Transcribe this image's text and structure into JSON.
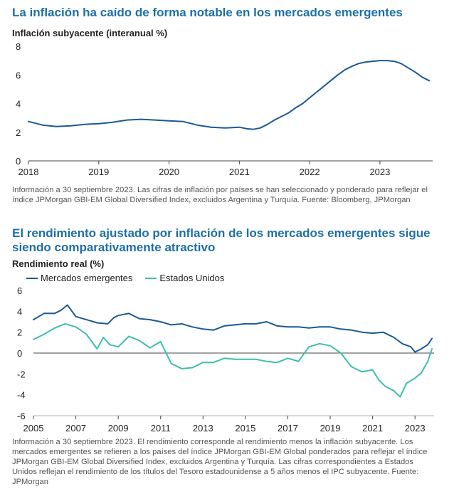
{
  "chart1": {
    "title": "La inflación ha caído de forma notable en los mercados emergentes",
    "ylabel": "Inflación subyacente (interanual %)",
    "note": "Información a 30 septiembre 2023. Las cifras de inflación por países se han seleccionado y ponderado para reflejar el índice JPMorgan GBI-EM Global Diversified Index, excluidos Argentina y Turquía. Fuente: Bloomberg, JPMorgan",
    "color": "#1a5a94"
  },
  "chart2": {
    "title": "El rendimiento ajustado por inflación de los mercados emergentes sigue siendo comparativamente atractivo",
    "ylabel": "Rendimiento real (%)",
    "legend": [
      "Mercados emergentes",
      "Estados Unidos"
    ],
    "note": "Información a 30 septiembre 2023. El rendimiento corresponde al rendimiento menos la inflación subyacente. Los mercados emergentes se refieren a los países del índice JPMorgan GBI-EM Global ponderados para reflejar el índice JPMorgan GBI-EM Global Diversified Index, excluidos Argentina y Turquía. Las cifras correspondientes a Estados Unidos reflejan el rendimiento de los títulos del Tesoro estadounidense a 5 años menos el IPC subyacente. Fuente: JPMorgan",
    "colors": [
      "#1a5a94",
      "#3bbfad"
    ]
  },
  "chart_data": [
    {
      "type": "line",
      "title": "La inflación ha caído de forma notable en los mercados emergentes",
      "ylabel": "Inflación subyacente (interanual %)",
      "xlabel": "",
      "xlim": [
        2018.0,
        2023.75
      ],
      "ylim": [
        0,
        8
      ],
      "yticks": [
        0,
        2,
        4,
        6,
        8
      ],
      "xticks": [
        2018,
        2019,
        2020,
        2021,
        2022,
        2023
      ],
      "series": [
        {
          "name": "Inflación subyacente",
          "x": [
            2018.0,
            2018.2,
            2018.4,
            2018.6,
            2018.8,
            2019.0,
            2019.2,
            2019.4,
            2019.6,
            2019.8,
            2020.0,
            2020.2,
            2020.4,
            2020.6,
            2020.8,
            2021.0,
            2021.1,
            2021.2,
            2021.3,
            2021.4,
            2021.5,
            2021.6,
            2021.7,
            2021.8,
            2021.9,
            2022.0,
            2022.1,
            2022.2,
            2022.3,
            2022.4,
            2022.5,
            2022.6,
            2022.7,
            2022.8,
            2022.9,
            2023.0,
            2023.1,
            2023.2,
            2023.3,
            2023.4,
            2023.5,
            2023.6,
            2023.7
          ],
          "y": [
            2.75,
            2.5,
            2.4,
            2.45,
            2.55,
            2.6,
            2.7,
            2.85,
            2.9,
            2.85,
            2.8,
            2.75,
            2.5,
            2.35,
            2.3,
            2.35,
            2.25,
            2.2,
            2.3,
            2.55,
            2.85,
            3.1,
            3.35,
            3.7,
            4.0,
            4.4,
            4.8,
            5.2,
            5.6,
            6.0,
            6.35,
            6.6,
            6.8,
            6.9,
            6.95,
            7.0,
            7.0,
            6.95,
            6.8,
            6.5,
            6.2,
            5.85,
            5.6
          ]
        }
      ]
    },
    {
      "type": "line",
      "title": "El rendimiento ajustado por inflación de los mercados emergentes sigue siendo comparativamente atractivo",
      "ylabel": "Rendimiento real (%)",
      "xlabel": "",
      "xlim": [
        2005.0,
        2023.9
      ],
      "ylim": [
        -6,
        6
      ],
      "yticks": [
        -6,
        -4,
        -2,
        0,
        2,
        4,
        6
      ],
      "xticks": [
        2005,
        2007,
        2009,
        2011,
        2013,
        2015,
        2017,
        2019,
        2021,
        2023
      ],
      "legend_position": "top-left",
      "series": [
        {
          "name": "Mercados emergentes",
          "x": [
            2005.0,
            2005.5,
            2006.0,
            2006.3,
            2006.6,
            2007.0,
            2007.5,
            2008.0,
            2008.5,
            2008.8,
            2009.0,
            2009.5,
            2010.0,
            2010.5,
            2011.0,
            2011.5,
            2012.0,
            2012.5,
            2013.0,
            2013.5,
            2014.0,
            2014.5,
            2015.0,
            2015.5,
            2016.0,
            2016.5,
            2017.0,
            2017.5,
            2018.0,
            2018.5,
            2019.0,
            2019.5,
            2020.0,
            2020.5,
            2021.0,
            2021.5,
            2022.0,
            2022.4,
            2022.8,
            2023.0,
            2023.3,
            2023.6,
            2023.8
          ],
          "y": [
            3.2,
            3.8,
            3.8,
            4.1,
            4.6,
            3.5,
            3.2,
            2.9,
            2.8,
            3.4,
            3.6,
            3.8,
            3.3,
            3.2,
            3.0,
            2.7,
            2.8,
            2.5,
            2.3,
            2.2,
            2.6,
            2.7,
            2.8,
            2.8,
            3.0,
            2.6,
            2.5,
            2.5,
            2.4,
            2.5,
            2.5,
            2.3,
            2.2,
            2.0,
            1.9,
            2.0,
            1.5,
            0.9,
            0.6,
            0.1,
            0.4,
            0.8,
            1.4
          ]
        },
        {
          "name": "Estados Unidos",
          "x": [
            2005.0,
            2005.5,
            2006.0,
            2006.5,
            2007.0,
            2007.5,
            2008.0,
            2008.3,
            2008.6,
            2009.0,
            2009.5,
            2010.0,
            2010.5,
            2011.0,
            2011.5,
            2012.0,
            2012.5,
            2013.0,
            2013.5,
            2014.0,
            2014.5,
            2015.0,
            2015.5,
            2016.0,
            2016.5,
            2017.0,
            2017.5,
            2018.0,
            2018.5,
            2019.0,
            2019.5,
            2020.0,
            2020.5,
            2021.0,
            2021.3,
            2021.6,
            2022.0,
            2022.3,
            2022.6,
            2023.0,
            2023.3,
            2023.6,
            2023.8
          ],
          "y": [
            1.3,
            1.8,
            2.4,
            2.8,
            2.5,
            1.8,
            0.4,
            1.5,
            0.8,
            0.6,
            1.6,
            1.2,
            0.5,
            1.1,
            -1.0,
            -1.5,
            -1.4,
            -0.9,
            -0.9,
            -0.5,
            -0.6,
            -0.6,
            -0.6,
            -0.8,
            -0.9,
            -0.5,
            -0.8,
            0.6,
            0.9,
            0.7,
            0.0,
            -1.3,
            -1.8,
            -1.6,
            -2.6,
            -3.2,
            -3.6,
            -4.2,
            -2.9,
            -2.4,
            -1.9,
            -0.8,
            0.4
          ]
        }
      ]
    }
  ]
}
